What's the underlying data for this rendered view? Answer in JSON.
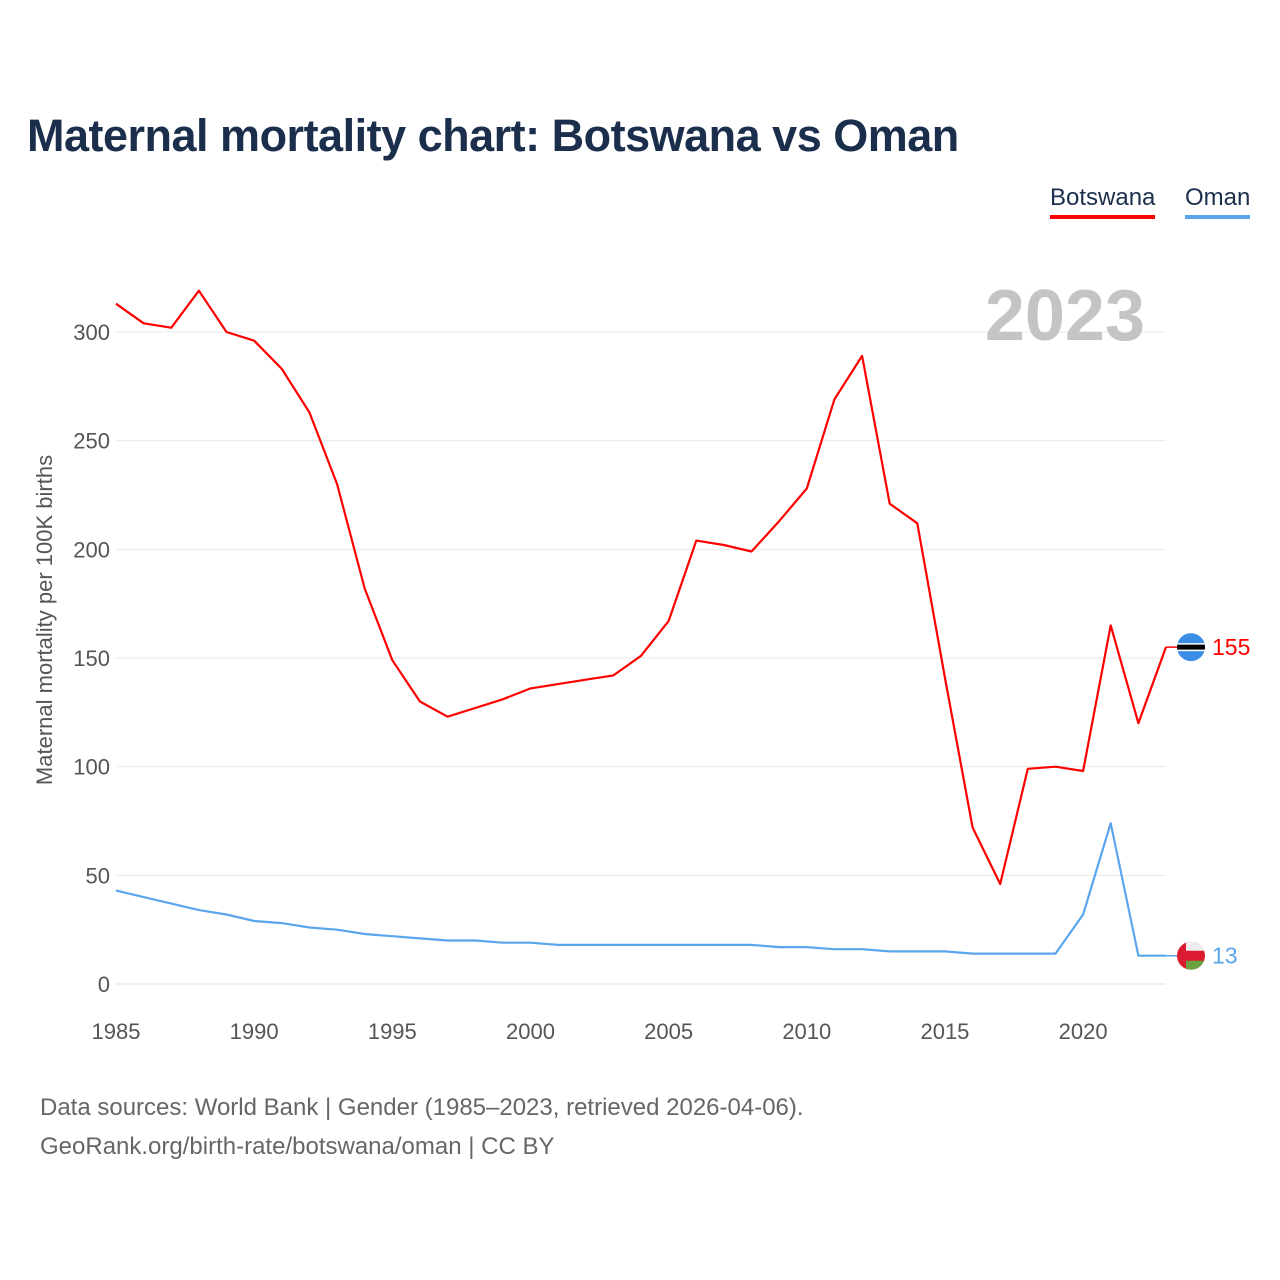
{
  "title": "Maternal mortality chart: Botswana vs Oman",
  "legend": [
    "Botswana",
    "Oman"
  ],
  "year_label": "2023",
  "source_line1": "Data sources: World Bank | Gender (1985–2023, retrieved 2026-04-06).",
  "source_line2": "GeoRank.org/birth-rate/botswana/oman | CC BY",
  "colors": {
    "Botswana": "#ff0000",
    "Oman": "#5aa5ec"
  },
  "chart_data": {
    "type": "line",
    "title": "Maternal mortality chart: Botswana vs Oman",
    "xlabel": "",
    "ylabel": "Maternal mortality per 100K births",
    "xlim": [
      1985,
      2023
    ],
    "ylim": [
      0,
      320
    ],
    "yticks": [
      0,
      50,
      100,
      150,
      200,
      250,
      300
    ],
    "xticks": [
      1985,
      1990,
      1995,
      2000,
      2005,
      2010,
      2015,
      2020
    ],
    "grid": true,
    "legend_position": "top-right",
    "x": [
      1985,
      1986,
      1987,
      1988,
      1989,
      1990,
      1991,
      1992,
      1993,
      1994,
      1995,
      1996,
      1997,
      1998,
      1999,
      2000,
      2001,
      2002,
      2003,
      2004,
      2005,
      2006,
      2007,
      2008,
      2009,
      2010,
      2011,
      2012,
      2013,
      2014,
      2015,
      2016,
      2017,
      2018,
      2019,
      2020,
      2021,
      2022,
      2023
    ],
    "series": [
      {
        "name": "Botswana",
        "end_label": "155",
        "values": [
          313,
          304,
          302,
          319,
          300,
          296,
          283,
          263,
          230,
          182,
          149,
          130,
          123,
          127,
          131,
          136,
          138,
          140,
          142,
          151,
          167,
          204,
          202,
          199,
          213,
          228,
          269,
          289,
          221,
          212,
          141,
          72,
          46,
          99,
          100,
          98,
          165,
          120,
          155
        ]
      },
      {
        "name": "Oman",
        "end_label": "13",
        "values": [
          43,
          40,
          37,
          34,
          32,
          29,
          28,
          26,
          25,
          23,
          22,
          21,
          20,
          20,
          19,
          19,
          18,
          18,
          18,
          18,
          18,
          18,
          18,
          18,
          17,
          17,
          16,
          16,
          15,
          15,
          15,
          14,
          14,
          14,
          14,
          32,
          74,
          13,
          13
        ]
      }
    ]
  }
}
